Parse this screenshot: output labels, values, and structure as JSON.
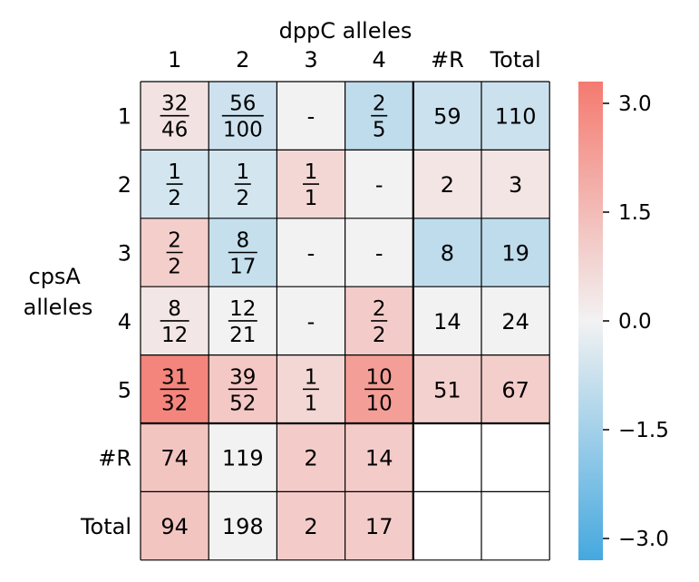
{
  "chart_data": {
    "type": "heatmap",
    "title": "dppC alleles",
    "ylabel": [
      "cpsA",
      "alleles"
    ],
    "col_labels": [
      "1",
      "2",
      "3",
      "4",
      "#R",
      "Total"
    ],
    "row_labels": [
      "1",
      "2",
      "3",
      "4",
      "5",
      "#R",
      "Total"
    ],
    "cells": [
      [
        {
          "num": "32",
          "den": "46",
          "score": 0.4
        },
        {
          "num": "56",
          "den": "100",
          "score": -0.7
        },
        {
          "text": "-",
          "score": 0
        },
        {
          "num": "2",
          "den": "5",
          "score": -1.0
        },
        {
          "text": "59",
          "score": -0.75
        },
        {
          "text": "110",
          "score": -0.75
        }
      ],
      [
        {
          "num": "1",
          "den": "2",
          "score": -0.6
        },
        {
          "num": "1",
          "den": "2",
          "score": -0.6
        },
        {
          "num": "1",
          "den": "1",
          "score": 0.75
        },
        {
          "text": "-",
          "score": 0
        },
        {
          "text": "2",
          "score": 0.35
        },
        {
          "text": "3",
          "score": 0.35
        }
      ],
      [
        {
          "num": "2",
          "den": "2",
          "score": 1.0
        },
        {
          "num": "8",
          "den": "17",
          "score": -0.85
        },
        {
          "text": "-",
          "score": 0
        },
        {
          "text": "-",
          "score": 0
        },
        {
          "text": "8",
          "score": -1.0
        },
        {
          "text": "19",
          "score": -1.0
        }
      ],
      [
        {
          "num": "8",
          "den": "12",
          "score": 0.3
        },
        {
          "num": "12",
          "den": "21",
          "score": 0
        },
        {
          "text": "-",
          "score": 0
        },
        {
          "num": "2",
          "den": "2",
          "score": 1.05
        },
        {
          "text": "14",
          "score": 0
        },
        {
          "text": "24",
          "score": 0
        }
      ],
      [
        {
          "num": "31",
          "den": "32",
          "score": 3.0
        },
        {
          "num": "39",
          "den": "52",
          "score": 1.15
        },
        {
          "num": "1",
          "den": "1",
          "score": 0.75
        },
        {
          "num": "10",
          "den": "10",
          "score": 2.3
        },
        {
          "text": "51",
          "score": 0.9
        },
        {
          "text": "67",
          "score": 1.0
        }
      ],
      [
        {
          "text": "74",
          "score": 1.25
        },
        {
          "text": "119",
          "score": 0
        },
        {
          "text": "2",
          "score": 1.05
        },
        {
          "text": "14",
          "score": 1.05
        },
        {
          "text": "",
          "score": null
        },
        {
          "text": "",
          "score": null
        }
      ],
      [
        {
          "text": "94",
          "score": 1.25
        },
        {
          "text": "198",
          "score": 0
        },
        {
          "text": "2",
          "score": 1.05
        },
        {
          "text": "17",
          "score": 1.05
        },
        {
          "text": "",
          "score": null
        },
        {
          "text": "",
          "score": null
        }
      ]
    ],
    "colorbar": {
      "range": [
        -3.3,
        3.3
      ],
      "ticks": [
        3.0,
        1.5,
        0.0,
        -1.5,
        -3.0
      ],
      "tick_labels": [
        "3.0",
        "1.5",
        "0.0",
        "−1.5",
        "−3.0"
      ]
    },
    "colors": {
      "positive_max": "#f47a70",
      "zero": "#f2f2f2",
      "negative_max": "#45a8df",
      "empty": "#ffffff",
      "grid": "#000000"
    }
  }
}
